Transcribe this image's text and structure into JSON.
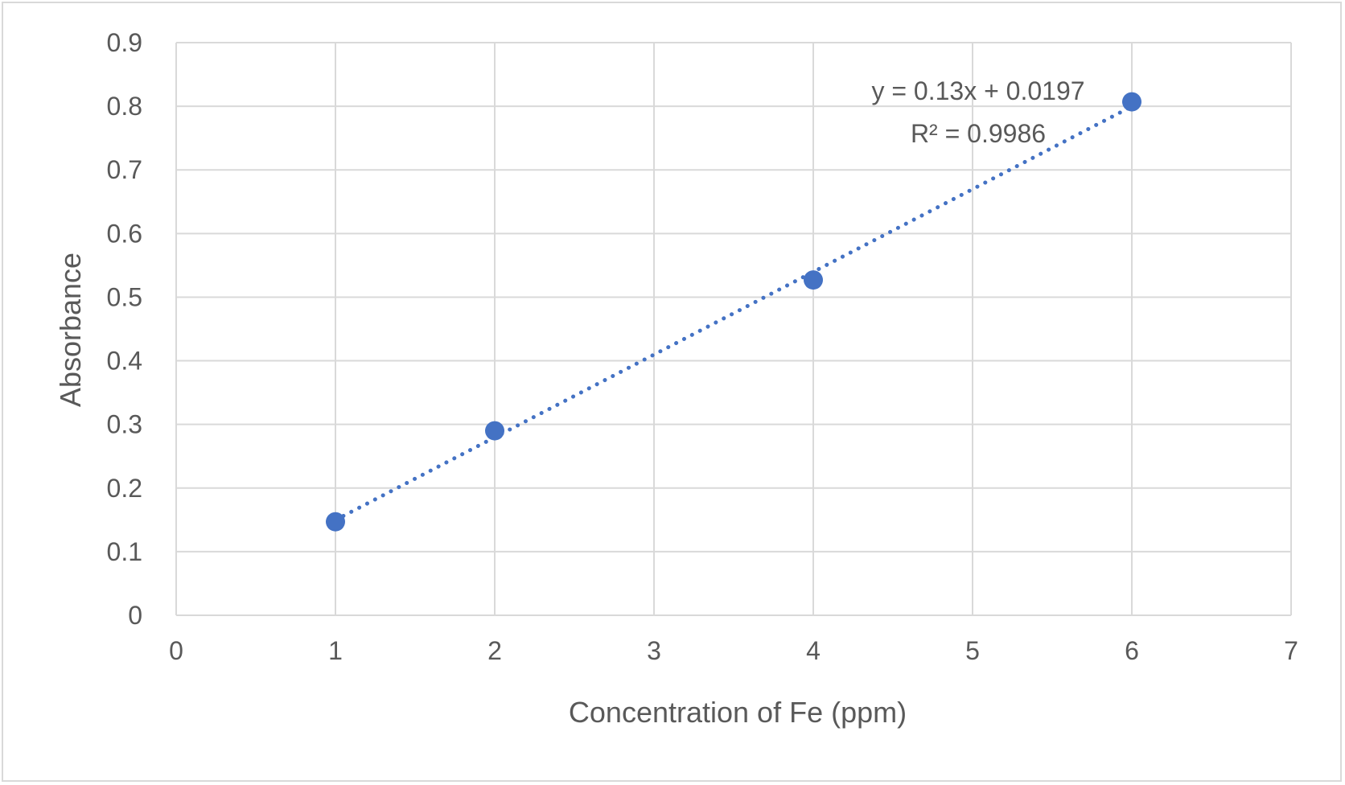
{
  "chart_data": {
    "type": "scatter",
    "xlabel": "Concentration of Fe (ppm)",
    "ylabel": "Absorbance",
    "xlim": [
      0,
      7
    ],
    "ylim": [
      0,
      0.9
    ],
    "x_ticks": [
      "0",
      "1",
      "2",
      "3",
      "4",
      "5",
      "6",
      "7"
    ],
    "y_ticks": [
      "0",
      "0.1",
      "0.2",
      "0.3",
      "0.4",
      "0.5",
      "0.6",
      "0.7",
      "0.8",
      "0.9"
    ],
    "grid": true,
    "series": [
      {
        "x": [
          1,
          2,
          4,
          6
        ],
        "y": [
          0.147,
          0.29,
          0.527,
          0.807
        ],
        "color": "#4472c4"
      }
    ],
    "trendline": {
      "type": "linear",
      "slope": 0.13,
      "intercept": 0.0197,
      "style": "dotted",
      "color": "#4472c4",
      "equation": "y = 0.13x + 0.0197",
      "r_squared": "R² = 0.9986"
    }
  }
}
